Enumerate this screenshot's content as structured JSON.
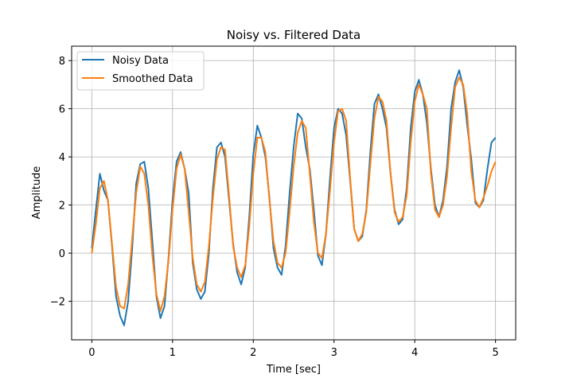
{
  "chart_data": {
    "type": "line",
    "title": "Noisy vs. Filtered Data",
    "xlabel": "Time [sec]",
    "ylabel": "Amplitude",
    "xlim": [
      -0.25,
      5.25
    ],
    "ylim": [
      -3.6,
      8.6
    ],
    "x_ticks": [
      0,
      1,
      2,
      3,
      4,
      5
    ],
    "x_tick_labels": [
      "0",
      "1",
      "2",
      "3",
      "4",
      "5"
    ],
    "y_ticks": [
      -2,
      0,
      2,
      4,
      6,
      8
    ],
    "y_tick_labels": [
      "−2",
      "0",
      "2",
      "4",
      "6",
      "8"
    ],
    "grid": true,
    "legend_position": "top-left",
    "x": [
      0,
      0.05,
      0.1,
      0.15,
      0.2,
      0.25,
      0.3,
      0.35,
      0.4,
      0.45,
      0.5,
      0.55,
      0.6,
      0.65,
      0.7,
      0.75,
      0.8,
      0.85,
      0.9,
      0.95,
      1.0,
      1.05,
      1.1,
      1.15,
      1.2,
      1.25,
      1.3,
      1.35,
      1.4,
      1.45,
      1.5,
      1.55,
      1.6,
      1.65,
      1.7,
      1.75,
      1.8,
      1.85,
      1.9,
      1.95,
      2.0,
      2.05,
      2.1,
      2.15,
      2.2,
      2.25,
      2.3,
      2.35,
      2.4,
      2.45,
      2.5,
      2.55,
      2.6,
      2.65,
      2.7,
      2.75,
      2.8,
      2.85,
      2.9,
      2.95,
      3.0,
      3.05,
      3.1,
      3.15,
      3.2,
      3.25,
      3.3,
      3.35,
      3.4,
      3.45,
      3.5,
      3.55,
      3.6,
      3.65,
      3.7,
      3.75,
      3.8,
      3.85,
      3.9,
      3.95,
      4.0,
      4.05,
      4.1,
      4.15,
      4.2,
      4.25,
      4.3,
      4.35,
      4.4,
      4.45,
      4.5,
      4.55,
      4.6,
      4.65,
      4.7,
      4.75,
      4.8,
      4.85,
      4.9,
      4.95,
      5.0
    ],
    "series": [
      {
        "name": "Noisy Data",
        "color": "#1f77b4",
        "values": [
          0.2,
          1.8,
          3.3,
          2.6,
          2.2,
          0.3,
          -1.8,
          -2.6,
          -3.0,
          -2.0,
          0.2,
          2.9,
          3.7,
          3.8,
          2.7,
          0.5,
          -1.8,
          -2.7,
          -2.2,
          -0.2,
          2.2,
          3.8,
          4.2,
          3.5,
          2.5,
          -0.4,
          -1.5,
          -1.9,
          -1.6,
          0.0,
          2.7,
          4.4,
          4.6,
          4.0,
          2.2,
          0.4,
          -0.8,
          -1.3,
          -0.6,
          1.5,
          4.1,
          5.3,
          4.8,
          4.0,
          2.3,
          0.2,
          -0.6,
          -0.9,
          0.3,
          2.5,
          4.4,
          5.8,
          5.6,
          4.4,
          3.5,
          1.8,
          -0.1,
          -0.5,
          0.8,
          3.1,
          5.2,
          6.0,
          5.8,
          4.9,
          3.0,
          1.0,
          0.5,
          0.7,
          1.8,
          4.2,
          6.2,
          6.6,
          6.0,
          5.2,
          3.3,
          1.8,
          1.2,
          1.4,
          2.7,
          5.2,
          6.7,
          7.2,
          6.6,
          5.4,
          3.5,
          2.0,
          1.5,
          2.2,
          3.6,
          6.0,
          7.1,
          7.6,
          6.9,
          5.3,
          3.9,
          2.1,
          1.9,
          2.2,
          3.5,
          4.6,
          4.8
        ]
      },
      {
        "name": "Smoothed Data",
        "color": "#ff7f0e",
        "values": [
          0.0,
          1.2,
          2.7,
          3.0,
          2.2,
          0.4,
          -1.4,
          -2.2,
          -2.3,
          -1.3,
          0.6,
          2.5,
          3.6,
          3.3,
          2.0,
          -0.1,
          -1.7,
          -2.4,
          -1.8,
          -0.3,
          1.8,
          3.5,
          4.1,
          3.5,
          1.7,
          -0.2,
          -1.3,
          -1.6,
          -1.2,
          0.3,
          2.3,
          3.9,
          4.4,
          4.3,
          2.4,
          0.3,
          -0.6,
          -1.0,
          -0.5,
          1.1,
          3.3,
          4.8,
          4.8,
          4.2,
          2.2,
          0.5,
          -0.4,
          -0.6,
          0.0,
          1.7,
          3.6,
          5.0,
          5.5,
          5.2,
          3.3,
          1.3,
          0.0,
          -0.2,
          0.8,
          2.6,
          4.6,
          5.9,
          6.0,
          5.5,
          3.1,
          1.0,
          0.5,
          0.8,
          1.7,
          3.7,
          5.6,
          6.5,
          6.3,
          5.5,
          3.3,
          1.7,
          1.3,
          1.5,
          2.4,
          4.6,
          6.3,
          7.0,
          6.6,
          6.0,
          3.3,
          1.8,
          1.5,
          2.0,
          3.2,
          5.2,
          6.9,
          7.3,
          7.0,
          5.8,
          3.4,
          2.2,
          1.9,
          2.3,
          2.8,
          3.4,
          3.8
        ]
      }
    ]
  }
}
